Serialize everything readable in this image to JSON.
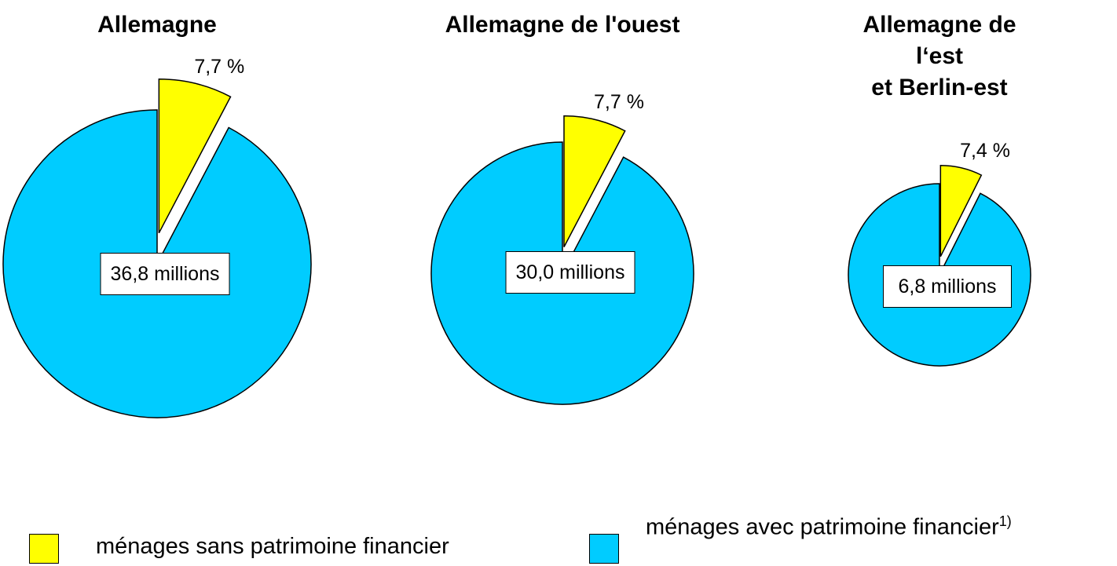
{
  "chart_data": [
    {
      "type": "pie",
      "title": "Allemagne",
      "values": [
        7.7,
        92.3
      ],
      "value_labels": [
        "7,7 %",
        null
      ],
      "annotation": "36,8 millions"
    },
    {
      "type": "pie",
      "title": "Allemagne de l'ouest",
      "values": [
        7.7,
        92.3
      ],
      "value_labels": [
        "7,7 %",
        null
      ],
      "annotation": "30,0 millions"
    },
    {
      "type": "pie",
      "title": "Allemagne de l‘est\net Berlin-est",
      "values": [
        7.4,
        92.6
      ],
      "value_labels": [
        "7,4 %",
        null
      ],
      "annotation": "6,8 millions"
    }
  ],
  "legend": {
    "items": [
      {
        "name": "ménages sans patrimoine financier",
        "color": "#ffff00"
      },
      {
        "name": "ménages avec patrimoine financier",
        "color": "#00ccff"
      }
    ],
    "footnote": "1)"
  }
}
